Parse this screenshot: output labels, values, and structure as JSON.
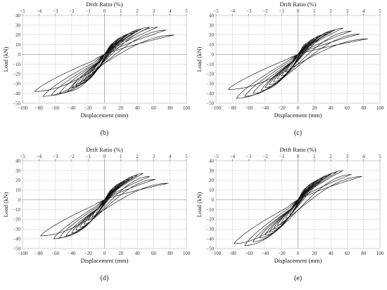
{
  "chart_data": [
    {
      "type": "line",
      "caption": "(b)",
      "xlabel": "Displacement (mm)",
      "ylabel": "Load (kN)",
      "x2label": "Drift Ratio (%)",
      "xlim": [
        -100,
        100
      ],
      "ylim": [
        -50,
        40
      ],
      "x2lim": [
        -5,
        5
      ],
      "xticks": [
        "−100",
        "−80",
        "−60",
        "−40",
        "−20",
        "0",
        "20",
        "40",
        "60",
        "80",
        "100"
      ],
      "yticks": [
        "40",
        "30",
        "20",
        "10",
        "0",
        "−10",
        "−20",
        "−30",
        "−40",
        "−50"
      ],
      "x2ticks": [
        "−5",
        "−4",
        "−3",
        "−2",
        "−1",
        "0",
        "1",
        "2",
        "3",
        "4",
        "5"
      ],
      "grid": true,
      "cycles": [
        {
          "dmax": 10,
          "fpos": 11,
          "fneg": -16
        },
        {
          "dmax": 15,
          "fpos": 14,
          "fneg": -19
        },
        {
          "dmax": 20,
          "fpos": 17,
          "fneg": -23
        },
        {
          "dmax": 25,
          "fpos": 19,
          "fneg": -27
        },
        {
          "dmax": 30,
          "fpos": 21,
          "fneg": -30
        },
        {
          "dmax": 35,
          "fpos": 22,
          "fneg": -32
        },
        {
          "dmax": 40,
          "fpos": 24,
          "fneg": -34
        },
        {
          "dmax": 45,
          "fpos": 26,
          "fneg": -38
        },
        {
          "dmax": 55,
          "fpos": 28,
          "fneg": -40
        },
        {
          "dmax": 65,
          "fpos": 28,
          "fneg": -42
        },
        {
          "dmax": 75,
          "fpos": 25,
          "fneg": -43
        },
        {
          "dmax": 85,
          "fpos": 20,
          "fneg": -38
        }
      ]
    },
    {
      "type": "line",
      "caption": "(c)",
      "xlabel": "Displacement (mm)",
      "ylabel": "Load (kN)",
      "x2label": "Drift Ratio (%)",
      "xlim": [
        -100,
        100
      ],
      "ylim": [
        -50,
        40
      ],
      "x2lim": [
        -5,
        5
      ],
      "xticks": [
        "−100",
        "−80",
        "−60",
        "−40",
        "−20",
        "0",
        "20",
        "40",
        "60",
        "80",
        "100"
      ],
      "yticks": [
        "40",
        "30",
        "20",
        "10",
        "0",
        "−10",
        "−20",
        "−30",
        "−40",
        "−50"
      ],
      "x2ticks": [
        "−5",
        "−4",
        "−3",
        "−2",
        "−1",
        "0",
        "1",
        "2",
        "3",
        "4",
        "5"
      ],
      "grid": true,
      "cycles": [
        {
          "dmax": 10,
          "fpos": 11,
          "fneg": -15
        },
        {
          "dmax": 15,
          "fpos": 13,
          "fneg": -18
        },
        {
          "dmax": 20,
          "fpos": 16,
          "fneg": -22
        },
        {
          "dmax": 25,
          "fpos": 18,
          "fneg": -25
        },
        {
          "dmax": 30,
          "fpos": 20,
          "fneg": -28
        },
        {
          "dmax": 35,
          "fpos": 21,
          "fneg": -31
        },
        {
          "dmax": 40,
          "fpos": 23,
          "fneg": -34
        },
        {
          "dmax": 45,
          "fpos": 25,
          "fneg": -37
        },
        {
          "dmax": 55,
          "fpos": 27,
          "fneg": -40
        },
        {
          "dmax": 65,
          "fpos": 24,
          "fneg": -43
        },
        {
          "dmax": 75,
          "fpos": 21,
          "fneg": -45
        },
        {
          "dmax": 85,
          "fpos": 16,
          "fneg": -36
        }
      ]
    },
    {
      "type": "line",
      "caption": "(d)",
      "xlabel": "Displacement (mm)",
      "ylabel": "Load (kN)",
      "x2label": "Drift Ratio (%)",
      "xlim": [
        -100,
        100
      ],
      "ylim": [
        -50,
        40
      ],
      "x2lim": [
        -5,
        5
      ],
      "xticks": [
        "−100",
        "−80",
        "−60",
        "−40",
        "−20",
        "0",
        "20",
        "40",
        "60",
        "80",
        "100"
      ],
      "yticks": [
        "40",
        "30",
        "20",
        "10",
        "0",
        "−10",
        "−20",
        "−30",
        "−40",
        "−50"
      ],
      "x2ticks": [
        "−5",
        "−4",
        "−3",
        "−2",
        "−1",
        "0",
        "1",
        "2",
        "3",
        "4",
        "5"
      ],
      "grid": true,
      "cycles": [
        {
          "dmax": 10,
          "fpos": 11,
          "fneg": -14
        },
        {
          "dmax": 15,
          "fpos": 14,
          "fneg": -17
        },
        {
          "dmax": 20,
          "fpos": 17,
          "fneg": -21
        },
        {
          "dmax": 25,
          "fpos": 19,
          "fneg": -25
        },
        {
          "dmax": 30,
          "fpos": 21,
          "fneg": -28
        },
        {
          "dmax": 35,
          "fpos": 23,
          "fneg": -31
        },
        {
          "dmax": 40,
          "fpos": 25,
          "fneg": -34
        },
        {
          "dmax": 47,
          "fpos": 27,
          "fneg": -37
        },
        {
          "dmax": 55,
          "fpos": 24,
          "fneg": -39
        },
        {
          "dmax": 62,
          "fpos": 21,
          "fneg": -40
        },
        {
          "dmax": 78,
          "fpos": 17,
          "fneg": -37
        }
      ]
    },
    {
      "type": "line",
      "caption": "(e)",
      "xlabel": "Displacement (mm)",
      "ylabel": "Load (kN)",
      "x2label": "Drift Ratio (%)",
      "xlim": [
        -100,
        100
      ],
      "ylim": [
        -50,
        40
      ],
      "x2lim": [
        -5,
        5
      ],
      "xticks": [
        "−100",
        "−80",
        "−60",
        "−40",
        "−20",
        "0",
        "20",
        "40",
        "60",
        "80",
        "100"
      ],
      "yticks": [
        "40",
        "30",
        "20",
        "10",
        "0",
        "−10",
        "−20",
        "−30",
        "−40",
        "−50"
      ],
      "x2ticks": [
        "−5",
        "−4",
        "−3",
        "−2",
        "−1",
        "0",
        "1",
        "2",
        "3",
        "4",
        "5"
      ],
      "grid": true,
      "cycles": [
        {
          "dmax": 10,
          "fpos": 12,
          "fneg": -15
        },
        {
          "dmax": 15,
          "fpos": 15,
          "fneg": -19
        },
        {
          "dmax": 20,
          "fpos": 18,
          "fneg": -23
        },
        {
          "dmax": 25,
          "fpos": 20,
          "fneg": -26
        },
        {
          "dmax": 30,
          "fpos": 22,
          "fneg": -30
        },
        {
          "dmax": 35,
          "fpos": 24,
          "fneg": -33
        },
        {
          "dmax": 40,
          "fpos": 26,
          "fneg": -36
        },
        {
          "dmax": 47,
          "fpos": 28,
          "fneg": -39
        },
        {
          "dmax": 55,
          "fpos": 30,
          "fneg": -43
        },
        {
          "dmax": 65,
          "fpos": 26,
          "fneg": -47
        },
        {
          "dmax": 78,
          "fpos": 24,
          "fneg": -45
        }
      ]
    }
  ]
}
